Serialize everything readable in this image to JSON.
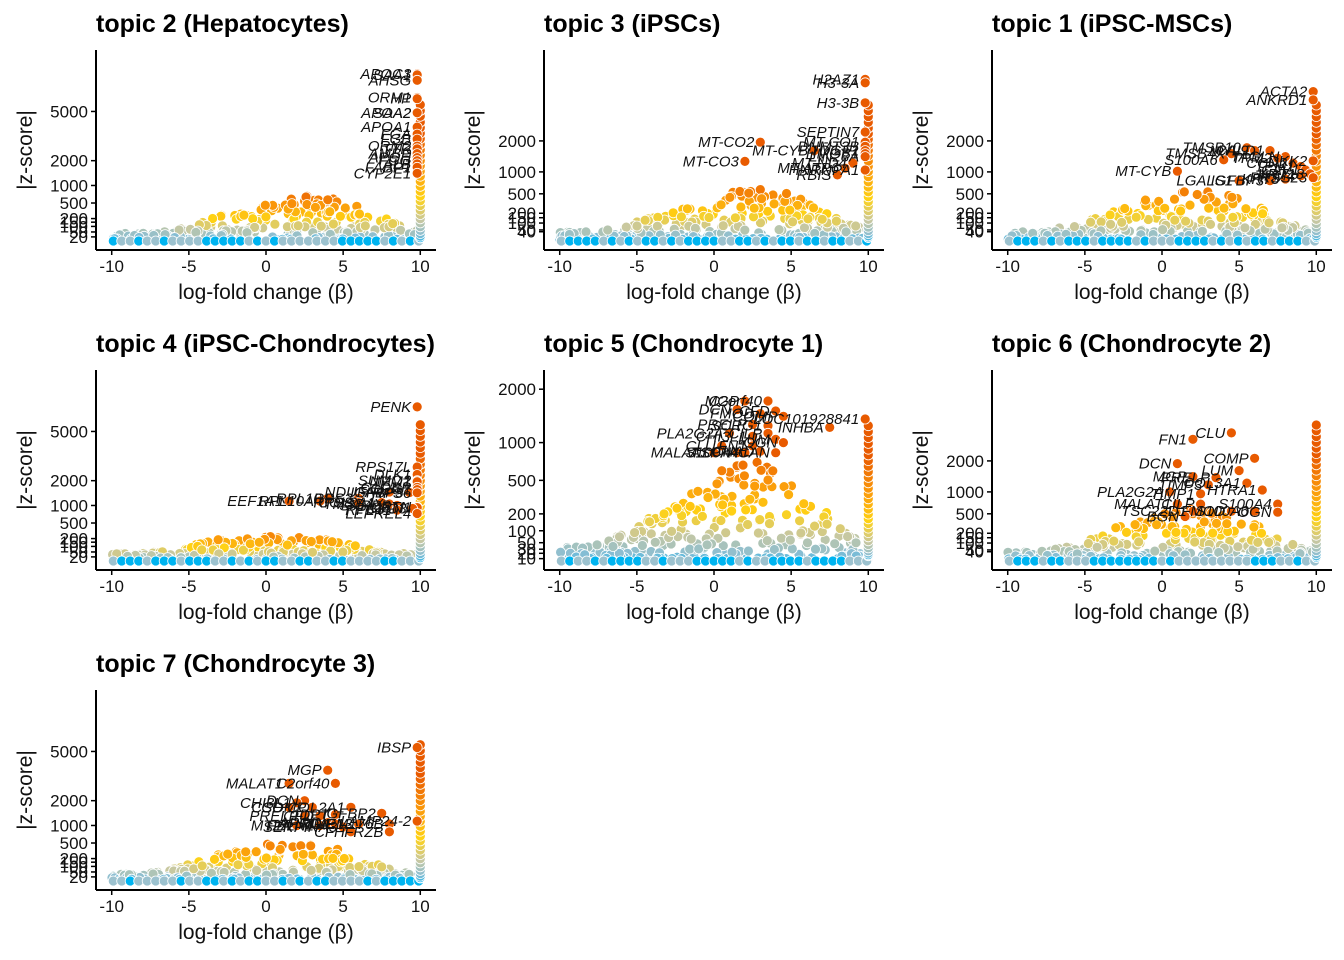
{
  "chart_data": [
    {
      "type": "scatter",
      "title": "topic 2 (Hepatocytes)",
      "xlabel": "log-fold change (β)",
      "ylabel": "|z-score|",
      "xlim": [
        -10.5,
        10.5
      ],
      "x_ticks": [
        -10,
        -5,
        0,
        5,
        10
      ],
      "x_tick_labels": [
        "-10",
        "-5",
        "0",
        "5",
        "10"
      ],
      "y_ticks": [
        20,
        50,
        100,
        150,
        200,
        500,
        1000,
        2000,
        5000
      ],
      "y_tick_labels": [
        "20",
        "50",
        "100",
        "150",
        "200",
        "500",
        "1000",
        "2000",
        "5000"
      ],
      "ymax": 10000,
      "mid_x": 3,
      "mid_height": 650,
      "annotation_anchor_x": 10,
      "labels": [
        {
          "text": "APOC3",
          "x": 9.8,
          "z": 8200
        },
        {
          "text": "SAA1",
          "x": 9.8,
          "z": 8100
        },
        {
          "text": "AHSG",
          "x": 9.8,
          "z": 7600
        },
        {
          "text": "ORM1",
          "x": 9.8,
          "z": 6100
        },
        {
          "text": "HP",
          "x": 9.8,
          "z": 6000
        },
        {
          "text": "APOA2",
          "x": 9.8,
          "z": 4900
        },
        {
          "text": "SAA2",
          "x": 9.8,
          "z": 4900
        },
        {
          "text": "APOA1",
          "x": 9.8,
          "z": 3900
        },
        {
          "text": "FGA",
          "x": 9.8,
          "z": 3450
        },
        {
          "text": "FGB",
          "x": 9.8,
          "z": 3150
        },
        {
          "text": "ORM2",
          "x": 9.8,
          "z": 2750
        },
        {
          "text": "TTR",
          "x": 9.8,
          "z": 2600
        },
        {
          "text": "AMBP",
          "x": 9.8,
          "z": 2350
        },
        {
          "text": "APOH",
          "x": 9.8,
          "z": 2150
        },
        {
          "text": "FGG",
          "x": 9.8,
          "z": 2000
        },
        {
          "text": "ALB",
          "x": 9.8,
          "z": 1850
        },
        {
          "text": "FABP1",
          "x": 9.8,
          "z": 1700
        },
        {
          "text": "CYP2E1",
          "x": 9.8,
          "z": 1450
        }
      ]
    },
    {
      "type": "scatter",
      "title": "topic 3 (iPSCs)",
      "xlabel": "log-fold change (β)",
      "ylabel": "|z-score|",
      "xlim": [
        -10.5,
        10.5
      ],
      "x_ticks": [
        -10,
        -5,
        0,
        5,
        10
      ],
      "x_tick_labels": [
        "-10",
        "-5",
        "0",
        "5",
        "10"
      ],
      "y_ticks": [
        40,
        50,
        100,
        150,
        200,
        500,
        1000,
        2000
      ],
      "y_tick_labels": [
        "40",
        "50",
        "100",
        "150",
        "200",
        "500",
        "1000",
        "2000"
      ],
      "ymax": 6500,
      "mid_x": 3,
      "mid_height": 600,
      "annotation_anchor_x": 10,
      "labels": [
        {
          "text": "H2AZ1",
          "x": 9.8,
          "z": 5000
        },
        {
          "text": "H3-3A",
          "x": 9.8,
          "z": 4800
        },
        {
          "text": "H3-3B",
          "x": 9.8,
          "z": 3700
        },
        {
          "text": "SEPTIN7",
          "x": 9.8,
          "z": 2350
        },
        {
          "text": "MT-CO2",
          "x": 3,
          "z": 1950
        },
        {
          "text": "MT-CO1",
          "x": 9.8,
          "z": 1950
        },
        {
          "text": "DNMT3B",
          "x": 9.8,
          "z": 1800
        },
        {
          "text": "TDGF1",
          "x": 9.8,
          "z": 1650
        },
        {
          "text": "MT-CYB",
          "x": 6.5,
          "z": 1650
        },
        {
          "text": "HMGB1",
          "x": 9.8,
          "z": 1550
        },
        {
          "text": "LIN28A",
          "x": 9.8,
          "z": 1450
        },
        {
          "text": "MT-CO3",
          "x": 2,
          "z": 1300
        },
        {
          "text": "MT-ND4",
          "x": 9,
          "z": 1250
        },
        {
          "text": "MT-ATP6",
          "x": 8.5,
          "z": 1100
        },
        {
          "text": "HNRNPA1",
          "x": 9.8,
          "z": 1050
        },
        {
          "text": "RBIS",
          "x": 8,
          "z": 920
        }
      ]
    },
    {
      "type": "scatter",
      "title": "topic 1 (iPSC-MSCs)",
      "xlabel": "log-fold change (β)",
      "ylabel": "|z-score|",
      "xlim": [
        -10.5,
        10.5
      ],
      "x_ticks": [
        -10,
        -5,
        0,
        5,
        10
      ],
      "x_tick_labels": [
        "-10",
        "-5",
        "0",
        "5",
        "10"
      ],
      "y_ticks": [
        40,
        50,
        100,
        150,
        200,
        500,
        1000,
        2000
      ],
      "y_tick_labels": [
        "40",
        "50",
        "100",
        "150",
        "200",
        "500",
        "1000",
        "2000"
      ],
      "ymax": 6500,
      "mid_x": 2.5,
      "mid_height": 600,
      "annotation_anchor_x": 10,
      "labels": [
        {
          "text": "ACTA2",
          "x": 9.8,
          "z": 4300
        },
        {
          "text": "ANKRD1",
          "x": 9.8,
          "z": 3850
        },
        {
          "text": "TMSB10",
          "x": 5.5,
          "z": 1750
        },
        {
          "text": "MYL9",
          "x": 6,
          "z": 1650
        },
        {
          "text": "CALD1",
          "x": 7,
          "z": 1650
        },
        {
          "text": "TMSB4X",
          "x": 4.5,
          "z": 1550
        },
        {
          "text": "TAGLN",
          "x": 8,
          "z": 1450
        },
        {
          "text": "TPM2",
          "x": 7.5,
          "z": 1400
        },
        {
          "text": "S100A6",
          "x": 4,
          "z": 1350
        },
        {
          "text": "DKK2",
          "x": 9.8,
          "z": 1320
        },
        {
          "text": "CCN2",
          "x": 8.5,
          "z": 1250
        },
        {
          "text": "TPM1",
          "x": 9,
          "z": 1150
        },
        {
          "text": "MT-CYB",
          "x": 1,
          "z": 1020
        },
        {
          "text": "CAV1",
          "x": 9.3,
          "z": 1050
        },
        {
          "text": "KRT18",
          "x": 9.6,
          "z": 950
        },
        {
          "text": "TPM4",
          "x": 9,
          "z": 900
        },
        {
          "text": "PRSS23",
          "x": 9.8,
          "z": 850
        },
        {
          "text": "LGALS1",
          "x": 5,
          "z": 780
        },
        {
          "text": "IGFBP3",
          "x": 7,
          "z": 780
        },
        {
          "text": "KRT8",
          "x": 8,
          "z": 820
        }
      ]
    },
    {
      "type": "scatter",
      "title": "topic 4 (iPSC-Chondrocytes)",
      "xlabel": "log-fold change (β)",
      "ylabel": "|z-score|",
      "xlim": [
        -10.5,
        10.5
      ],
      "x_ticks": [
        -10,
        -5,
        0,
        5,
        10
      ],
      "x_tick_labels": [
        "-10",
        "-5",
        "0",
        "5",
        "10"
      ],
      "y_ticks": [
        20,
        50,
        100,
        150,
        200,
        500,
        1000,
        2000,
        5000
      ],
      "y_tick_labels": [
        "20",
        "50",
        "100",
        "150",
        "200",
        "500",
        "1000",
        "2000",
        "5000"
      ],
      "ymax": 10000,
      "mid_x": 2,
      "mid_height": 200,
      "annotation_anchor_x": 10,
      "labels": [
        {
          "text": "PENK",
          "x": 9.8,
          "z": 7000
        },
        {
          "text": "RPS17L",
          "x": 9.8,
          "z": 2700
        },
        {
          "text": "DLK1",
          "x": 9.8,
          "z": 2300
        },
        {
          "text": "SUMO2",
          "x": 9.8,
          "z": 2000
        },
        {
          "text": "NPM1",
          "x": 9.8,
          "z": 1950
        },
        {
          "text": "C1QBP",
          "x": 9.8,
          "z": 1700
        },
        {
          "text": "SCRG1",
          "x": 9.8,
          "z": 1600
        },
        {
          "text": "NDUFA4",
          "x": 8,
          "z": 1500
        },
        {
          "text": "IGFBP5",
          "x": 9.3,
          "z": 1480
        },
        {
          "text": "RPS6",
          "x": 9.8,
          "z": 1470
        },
        {
          "text": "RPL10",
          "x": 4,
          "z": 1250
        },
        {
          "text": "RPS3",
          "x": 6,
          "z": 1250
        },
        {
          "text": "EEF1A1",
          "x": 1.5,
          "z": 1150
        },
        {
          "text": "RPL10A",
          "x": 3.5,
          "z": 1150
        },
        {
          "text": "RPS8",
          "x": 6,
          "z": 1100
        },
        {
          "text": "COL2A1",
          "x": 7.5,
          "z": 1100
        },
        {
          "text": "TMSB4X",
          "x": 8,
          "z": 1050
        },
        {
          "text": "SNRPB",
          "x": 8.5,
          "z": 1000
        },
        {
          "text": "PTN",
          "x": 9.8,
          "z": 950
        },
        {
          "text": "CCN1",
          "x": 9.8,
          "z": 930
        },
        {
          "text": "GPC3",
          "x": 9.5,
          "z": 900
        },
        {
          "text": "RPL41",
          "x": 8.5,
          "z": 850
        },
        {
          "text": "LEPREL4",
          "x": 9.8,
          "z": 750
        }
      ]
    },
    {
      "type": "scatter",
      "title": "topic 5 (Chondrocyte 1)",
      "xlabel": "log-fold change (β)",
      "ylabel": "|z-score|",
      "xlim": [
        -10.5,
        10.5
      ],
      "x_ticks": [
        -10,
        -5,
        0,
        5,
        10
      ],
      "x_tick_labels": [
        "-10",
        "-5",
        "0",
        "5",
        "10"
      ],
      "y_ticks": [
        10,
        20,
        30,
        50,
        100,
        200,
        500,
        1000,
        2000
      ],
      "y_tick_labels": [
        "10",
        "20",
        "30",
        "50",
        "100",
        "200",
        "500",
        "1000",
        "2000"
      ],
      "ymax": 2300,
      "mid_x": 2.5,
      "mid_height": 700,
      "annotation_anchor_x": 10,
      "labels": [
        {
          "text": "MGP",
          "x": 2,
          "z": 1750
        },
        {
          "text": "C2orf40",
          "x": 3.5,
          "z": 1750
        },
        {
          "text": "DCN",
          "x": 1.5,
          "z": 1580
        },
        {
          "text": "FMOD",
          "x": 3,
          "z": 1500
        },
        {
          "text": "CFD",
          "x": 4,
          "z": 1550
        },
        {
          "text": "COMP",
          "x": 4.5,
          "z": 1450
        },
        {
          "text": "LOC101928841",
          "x": 9.8,
          "z": 1400
        },
        {
          "text": "PRELP",
          "x": 2.5,
          "z": 1300
        },
        {
          "text": "SCRG1",
          "x": 3.5,
          "z": 1280
        },
        {
          "text": "INHBA",
          "x": 7.5,
          "z": 1250
        },
        {
          "text": "PLA2G2A",
          "x": 1,
          "z": 1150
        },
        {
          "text": "CILP",
          "x": 3.5,
          "z": 1150
        },
        {
          "text": "CHI3L1",
          "x": 2.5,
          "z": 1100
        },
        {
          "text": "LUM",
          "x": 4,
          "z": 1050
        },
        {
          "text": "OGN",
          "x": 4.5,
          "z": 1000
        },
        {
          "text": "CLU",
          "x": 0.5,
          "z": 950
        },
        {
          "text": "FN1",
          "x": 2.5,
          "z": 950
        },
        {
          "text": "MALAT1",
          "x": 0,
          "z": 850
        },
        {
          "text": "ASPN",
          "x": 1.5,
          "z": 850
        },
        {
          "text": "S100A4",
          "x": 2,
          "z": 850
        },
        {
          "text": "CHAD",
          "x": 3,
          "z": 870
        },
        {
          "text": "ACAN",
          "x": 4,
          "z": 850
        }
      ]
    },
    {
      "type": "scatter",
      "title": "topic 6 (Chondrocyte 2)",
      "xlabel": "log-fold change (β)",
      "ylabel": "|z-score|",
      "xlim": [
        -10.5,
        10.5
      ],
      "x_ticks": [
        -10,
        -5,
        0,
        5,
        10
      ],
      "x_tick_labels": [
        "-10",
        "-5",
        "0",
        "5",
        "10"
      ],
      "y_ticks": [
        40,
        50,
        100,
        150,
        200,
        500,
        1000,
        2000
      ],
      "y_tick_labels": [
        "40",
        "50",
        "100",
        "150",
        "200",
        "500",
        "1000",
        "2000"
      ],
      "ymax": 6500,
      "mid_x": 2.5,
      "mid_height": 600,
      "annotation_anchor_x": 10,
      "labels": [
        {
          "text": "CLU",
          "x": 4.5,
          "z": 3200
        },
        {
          "text": "FN1",
          "x": 2,
          "z": 2900
        },
        {
          "text": "COMP",
          "x": 6,
          "z": 2100
        },
        {
          "text": "DCN",
          "x": 1,
          "z": 1900
        },
        {
          "text": "LUM",
          "x": 5,
          "z": 1650
        },
        {
          "text": "MGP",
          "x": 2,
          "z": 1450
        },
        {
          "text": "PRELP",
          "x": 3.5,
          "z": 1420
        },
        {
          "text": "TIMP3",
          "x": 3,
          "z": 1200
        },
        {
          "text": "COL3A1",
          "x": 5.5,
          "z": 1250
        },
        {
          "text": "HTRA1",
          "x": 6.5,
          "z": 1050
        },
        {
          "text": "PLA2G2A",
          "x": 0.5,
          "z": 1000
        },
        {
          "text": "TIMP1",
          "x": 2.5,
          "z": 950
        },
        {
          "text": "MALAT1",
          "x": 1,
          "z": 700
        },
        {
          "text": "CILP",
          "x": 2.5,
          "z": 700
        },
        {
          "text": "S100A4",
          "x": 7.5,
          "z": 700
        },
        {
          "text": "TSC22D1",
          "x": 2,
          "z": 550
        },
        {
          "text": "FMOD",
          "x": 4.5,
          "z": 550
        },
        {
          "text": "S100A6",
          "x": 6,
          "z": 550
        },
        {
          "text": "OGN",
          "x": 7.5,
          "z": 530
        },
        {
          "text": "BGN",
          "x": 1.5,
          "z": 450
        }
      ]
    },
    {
      "type": "scatter",
      "title": "topic 7 (Chondrocyte 3)",
      "xlabel": "log-fold change (β)",
      "ylabel": "|z-score|",
      "xlim": [
        -10.5,
        10.5
      ],
      "x_ticks": [
        -10,
        -5,
        0,
        5,
        10
      ],
      "x_tick_labels": [
        "-10",
        "-5",
        "0",
        "5",
        "10"
      ],
      "y_ticks": [
        20,
        50,
        100,
        150,
        200,
        500,
        1000,
        2000,
        5000
      ],
      "y_tick_labels": [
        "20",
        "50",
        "100",
        "150",
        "200",
        "500",
        "1000",
        "2000",
        "5000"
      ],
      "ymax": 10000,
      "mid_x": 2,
      "mid_height": 500,
      "annotation_anchor_x": 10,
      "labels": [
        {
          "text": "IBSP",
          "x": 9.8,
          "z": 5300
        },
        {
          "text": "MGP",
          "x": 4,
          "z": 3700
        },
        {
          "text": "MALAT1",
          "x": 1.5,
          "z": 2900
        },
        {
          "text": "C2orf40",
          "x": 4.5,
          "z": 2900
        },
        {
          "text": "DCN",
          "x": 2.5,
          "z": 2000
        },
        {
          "text": "CHI3L1",
          "x": 2,
          "z": 1900
        },
        {
          "text": "COL2A1",
          "x": 5.5,
          "z": 1700
        },
        {
          "text": "CSD",
          "x": 1.5,
          "z": 1700
        },
        {
          "text": "COMP",
          "x": 3,
          "z": 1700
        },
        {
          "text": "PRELP",
          "x": 2.5,
          "z": 1350
        },
        {
          "text": "CFD",
          "x": 3.5,
          "z": 1350
        },
        {
          "text": "DPT",
          "x": 4.5,
          "z": 1400
        },
        {
          "text": "IGFBP2",
          "x": 7.5,
          "z": 1450
        },
        {
          "text": "MT2A",
          "x": 2,
          "z": 1000
        },
        {
          "text": "APOD",
          "x": 4,
          "z": 1100
        },
        {
          "text": "FBLN1",
          "x": 3.5,
          "z": 1000
        },
        {
          "text": "PRG4",
          "x": 4.5,
          "z": 1050
        },
        {
          "text": "MMP13",
          "x": 6,
          "z": 1050
        },
        {
          "text": "SERPINA3",
          "x": 5,
          "z": 950
        },
        {
          "text": "TMEM176B",
          "x": 8,
          "z": 1050
        },
        {
          "text": "LAMP24-2",
          "x": 9.8,
          "z": 1150
        },
        {
          "text": "CFH",
          "x": 5.5,
          "z": 800
        },
        {
          "text": "FRZB",
          "x": 8,
          "z": 800
        }
      ]
    }
  ]
}
